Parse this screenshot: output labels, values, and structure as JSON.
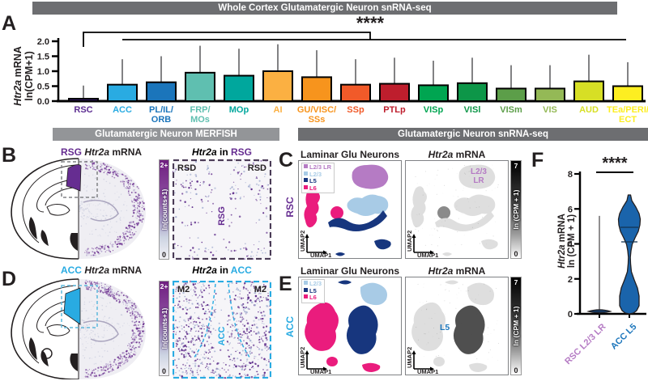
{
  "headers": {
    "top": "Whole Cortex Glutamatergic Neuron snRNA-seq",
    "merfish": "Glutamatergic Neuron MERFISH",
    "snrnaseq": "Glutamatergic Neuron snRNA-seq"
  },
  "panels": {
    "a": "A",
    "b": "B",
    "c": "C",
    "d": "D",
    "e": "E",
    "f": "F"
  },
  "shared": {
    "gene": "Htr2a",
    "mrna": "mRNA",
    "in": "in",
    "umap1": "UMAP1",
    "umap2": "UMAP2"
  },
  "panel_a": {
    "ylabel_line2": "ln(CPM+1)",
    "significance": "****"
  },
  "merfish_b": {
    "region": "RSG",
    "adjacent_left": "RSD",
    "adjacent_right": "RSD",
    "region_color": "#662d91"
  },
  "merfish_d": {
    "region": "ACC",
    "adjacent_left": "M2",
    "adjacent_right": "M2",
    "region_color": "#29abe2"
  },
  "merfish_scale": {
    "top": "2+",
    "bottom": "0",
    "label": "ln(counts+1)"
  },
  "seq_scale": {
    "top": "7",
    "bottom": "0",
    "label": "ln (CPM + 1)"
  },
  "umap": {
    "title_left": "Laminar Glu Neurons",
    "rsc_side_label": "RSC",
    "acc_side_label": "ACC",
    "c_annotation_line1": "L2/3",
    "c_annotation_line2": "LR",
    "e_annotation": "L5",
    "legend_c": [
      {
        "label": "L2/3 LR",
        "color": "#b57bc4"
      },
      {
        "label": "L2/3",
        "color": "#a8cbe6"
      },
      {
        "label": "L5",
        "color": "#17367e"
      },
      {
        "label": "L6",
        "color": "#ea1c7d"
      }
    ],
    "legend_e": [
      {
        "label": "L2/3",
        "color": "#a8cbe6"
      },
      {
        "label": "L5",
        "color": "#17367e"
      },
      {
        "label": "L6",
        "color": "#ea1c7d"
      }
    ]
  },
  "violin": {
    "ylabel_line2": "ln (CPM + 1)",
    "significance": "****",
    "categories": [
      {
        "label": "RSC L2/3 LR",
        "color": "#b57bc4"
      },
      {
        "label": "ACC L5",
        "color": "#1b75bb"
      }
    ]
  },
  "chart_data": [
    {
      "type": "bar",
      "title": "Whole Cortex Glutamatergic Neuron snRNA-seq",
      "ylabel": "Htr2a mRNA ln(CPM+1)",
      "ylim": [
        0,
        2.0
      ],
      "yticks": [
        0.0,
        0.5,
        1.0,
        1.5,
        2.0
      ],
      "categories": [
        "RSC",
        "ACC",
        "PL/IL/ORB",
        "FRP/MOs",
        "MOp",
        "AI",
        "GU/VISC/SSs",
        "SSp",
        "PTLp",
        "VISp",
        "VISl",
        "VISm",
        "VIS",
        "AUD",
        "TEa/PERI/ECT"
      ],
      "label_lines": [
        [
          "RSC"
        ],
        [
          "ACC"
        ],
        [
          "PL/IL/",
          "ORB"
        ],
        [
          "FRP/",
          "MOs"
        ],
        [
          "MOp"
        ],
        [
          "AI"
        ],
        [
          "GU/VISC/",
          "SSs"
        ],
        [
          "SSp"
        ],
        [
          "PTLp"
        ],
        [
          "VISp"
        ],
        [
          "VISl"
        ],
        [
          "VISm"
        ],
        [
          "VIS"
        ],
        [
          "AUD"
        ],
        [
          "TEa/PERI/",
          "ECT"
        ]
      ],
      "values": [
        0.08,
        0.55,
        0.63,
        0.95,
        0.85,
        1.0,
        0.8,
        0.55,
        0.58,
        0.53,
        0.6,
        0.42,
        0.42,
        0.66,
        0.5
      ],
      "errors_upper": [
        0.52,
        1.4,
        1.5,
        1.85,
        1.75,
        1.9,
        1.7,
        1.4,
        1.45,
        1.35,
        1.45,
        1.2,
        1.2,
        1.55,
        1.3
      ],
      "colors": [
        "#331c6d",
        "#29abe2",
        "#1b75bb",
        "#5fbfb0",
        "#00a79d",
        "#fbb042",
        "#f7941d",
        "#f15a29",
        "#be1e2d",
        "#00a551",
        "#0d9648",
        "#5c9e49",
        "#94b956",
        "#d7df25",
        "#fdee21"
      ],
      "label_colors": [
        "#5c2d91",
        "#29abe2",
        "#1b75bb",
        "#5fbfb0",
        "#00a79d",
        "#fbb042",
        "#f7941d",
        "#f15a29",
        "#be1e2d",
        "#00a551",
        "#0d9648",
        "#5c9e49",
        "#94b956",
        "#d7df25",
        "#fdee21"
      ],
      "significance": "****",
      "comparison": "RSC vs ACC through TEa/PERI/ECT"
    },
    {
      "type": "violin",
      "categories": [
        "RSC L2/3 LR",
        "ACC L5"
      ],
      "ylabel": "Htr2a mRNA ln (CPM + 1)",
      "ylim": [
        0,
        8
      ],
      "yticks": [
        0,
        2,
        4,
        6,
        8
      ],
      "significance": "****",
      "stats": [
        {
          "group": "RSC L2/3 LR",
          "bulk_at": 0.05,
          "whisker_max": 5.6
        },
        {
          "group": "ACC L5",
          "median": 4.95,
          "quartile": 4.1,
          "max": 6.8,
          "min": 0,
          "lower_bulge": [
            0,
            0.9
          ]
        }
      ]
    }
  ]
}
